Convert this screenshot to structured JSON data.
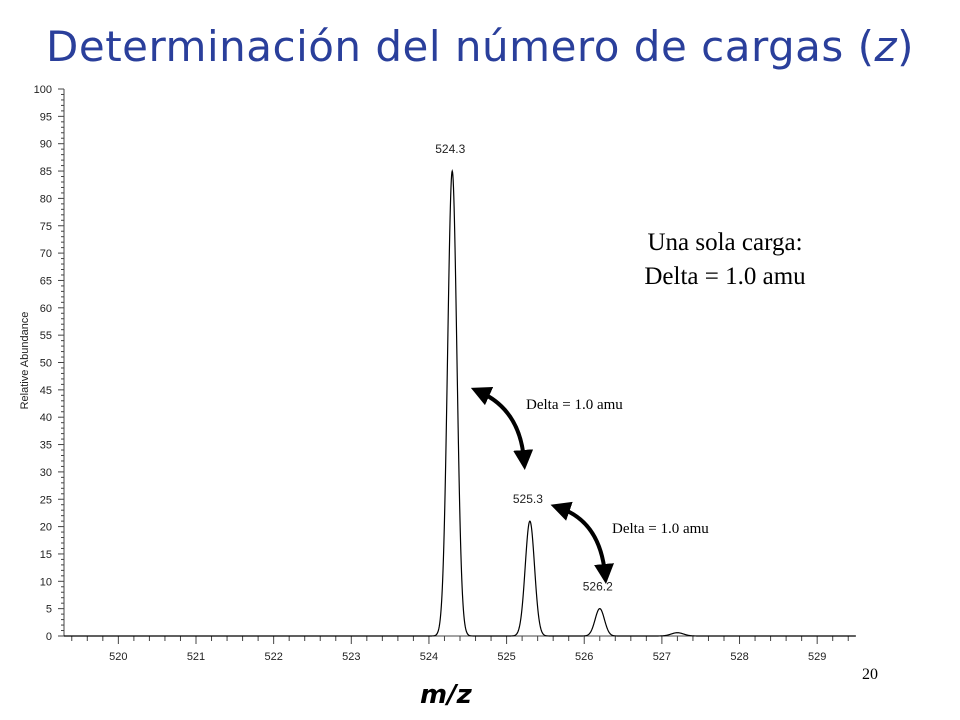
{
  "slide": {
    "title_main": "Determinación del número de cargas (",
    "title_var": "z",
    "title_close": ")",
    "page_number": "20",
    "note_line1": "Una sola carga:",
    "note_line2": "Delta = 1.0 amu",
    "delta_label_1": "Delta = 1.0 amu",
    "delta_label_2": "Delta = 1.0 amu"
  },
  "chart_data": {
    "type": "line",
    "title": "",
    "xlabel": "m/z",
    "ylabel": "Relative Abundance",
    "xlim": [
      519.3,
      529.5
    ],
    "ylim": [
      0,
      100
    ],
    "x_ticks": [
      "520",
      "521",
      "522",
      "523",
      "524",
      "525",
      "526",
      "527",
      "528",
      "529"
    ],
    "y_ticks": [
      "0",
      "5",
      "10",
      "15",
      "20",
      "25",
      "30",
      "35",
      "40",
      "45",
      "50",
      "55",
      "60",
      "65",
      "70",
      "75",
      "80",
      "85",
      "90",
      "95",
      "100"
    ],
    "peaks": [
      {
        "mz": 524.3,
        "intensity": 85,
        "label": "524.3"
      },
      {
        "mz": 525.3,
        "intensity": 21,
        "label": "525.3"
      },
      {
        "mz": 526.2,
        "intensity": 5,
        "label": "526.2"
      },
      {
        "mz": 527.2,
        "intensity": 0.6,
        "label": ""
      }
    ],
    "grid": false,
    "line_color": "#000000"
  }
}
